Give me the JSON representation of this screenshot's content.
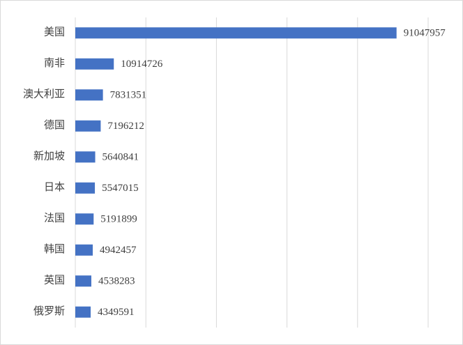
{
  "chart_data": {
    "type": "hbar",
    "categories": [
      "美国",
      "南非",
      "澳大利亚",
      "德国",
      "新加坡",
      "日本",
      "法国",
      "韩国",
      "英国",
      "俄罗斯"
    ],
    "values": [
      91047957,
      10914726,
      7831351,
      7196212,
      5640841,
      5547015,
      5191899,
      4942457,
      4538283,
      4349591
    ],
    "color": "#4472c4",
    "xlim": [
      0,
      100000000
    ],
    "xticks": [
      0,
      20000000,
      40000000,
      60000000,
      80000000,
      100000000
    ],
    "grid": true
  }
}
